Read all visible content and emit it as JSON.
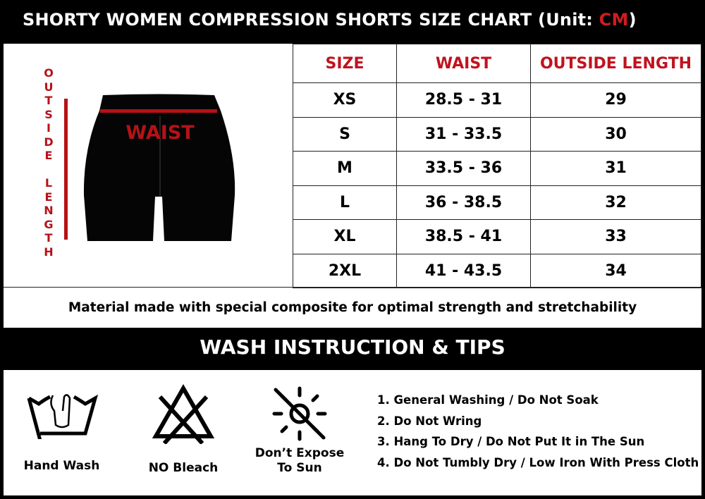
{
  "header": {
    "title": "SHORTY WOMEN COMPRESSION SHORTS SIZE CHART (Unit: ",
    "unit": "CM",
    "close": ")"
  },
  "illustration": {
    "vertical_label": [
      "O",
      "U",
      "T",
      "S",
      "I",
      "D",
      "E",
      "",
      "L",
      "E",
      "N",
      "G",
      "T",
      "H"
    ],
    "waist_label": "WAIST",
    "accent_color": "#b51217"
  },
  "table": {
    "headers": [
      "SIZE",
      "WAIST",
      "OUTSIDE LENGTH"
    ],
    "rows": [
      [
        "XS",
        "28.5 - 31",
        "29"
      ],
      [
        "S",
        "31 - 33.5",
        "30"
      ],
      [
        "M",
        "33.5 - 36",
        "31"
      ],
      [
        "L",
        "36 - 38.5",
        "32"
      ],
      [
        "XL",
        "38.5 - 41",
        "33"
      ],
      [
        "2XL",
        "41 - 43.5",
        "34"
      ]
    ]
  },
  "material": "Material made with special composite for optimal strength and stretchability",
  "wash": {
    "title": "WASH INSTRUCTION & TIPS",
    "icons": [
      {
        "icon": "hand-wash-icon",
        "label": "Hand Wash"
      },
      {
        "icon": "no-bleach-icon",
        "label": "NO Bleach"
      },
      {
        "icon": "no-sun-icon",
        "label1": "Don’t Expose",
        "label2": "To Sun"
      }
    ],
    "tips": [
      "1. General Washing / Do Not Soak",
      "2. Do Not Wring",
      "3. Hang To Dry / Do Not Put It in The Sun",
      "4. Do Not Tumbly Dry / Low Iron With Press Cloth"
    ]
  }
}
